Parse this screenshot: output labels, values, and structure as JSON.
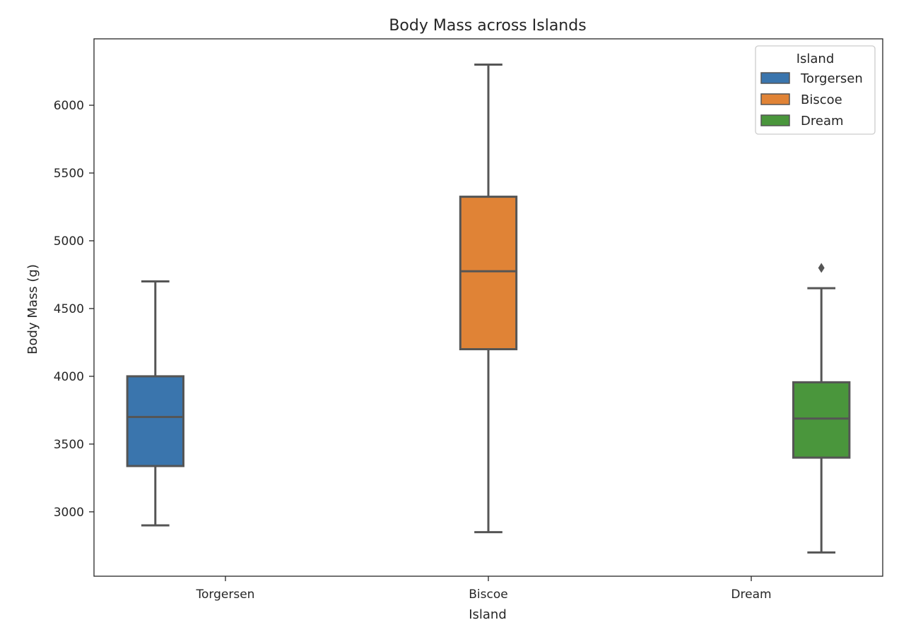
{
  "chart_data": {
    "type": "box",
    "title": "Body Mass across Islands",
    "xlabel": "Island",
    "ylabel": "Body Mass (g)",
    "categories": [
      "Torgersen",
      "Biscoe",
      "Dream"
    ],
    "ylim": [
      2525,
      6490
    ],
    "yticks": [
      3000,
      3500,
      4000,
      4500,
      5000,
      5500,
      6000
    ],
    "grid": false,
    "legend": {
      "title": "Island",
      "position": "top-right"
    },
    "series": [
      {
        "name": "Torgersen",
        "color": "#3a75ad",
        "whisker_low": 2900,
        "q1": 3338,
        "median": 3700,
        "q3": 4000,
        "whisker_high": 4700,
        "outliers": []
      },
      {
        "name": "Biscoe",
        "color": "#e08336",
        "whisker_low": 2850,
        "q1": 4200,
        "median": 4775,
        "q3": 5325,
        "whisker_high": 6300,
        "outliers": []
      },
      {
        "name": "Dream",
        "color": "#4a963c",
        "whisker_low": 2700,
        "q1": 3400,
        "median": 3688,
        "q3": 3956,
        "whisker_high": 4650,
        "outliers": [
          4800
        ]
      }
    ]
  }
}
